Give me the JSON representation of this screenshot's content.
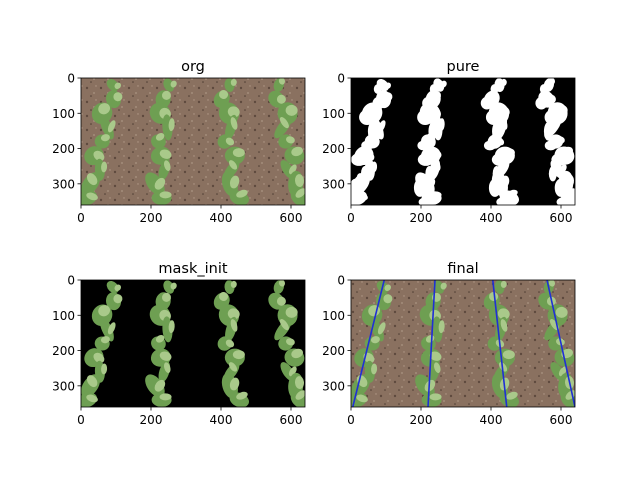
{
  "chart_data": [
    {
      "type": "image",
      "title": "org",
      "content": "rgb field photo of corn rows on soil",
      "xlim": [
        0,
        640
      ],
      "ylim": [
        360,
        0
      ],
      "xticks": [
        0,
        200,
        400,
        600
      ],
      "yticks": [
        0,
        100,
        200,
        300
      ]
    },
    {
      "type": "image",
      "title": "pure",
      "content": "binary vegetation mask, white plants on black",
      "xlim": [
        0,
        640
      ],
      "ylim": [
        360,
        0
      ],
      "xticks": [
        0,
        200,
        400,
        600
      ],
      "yticks": [
        0,
        100,
        200,
        300
      ]
    },
    {
      "type": "image",
      "title": "mask_init",
      "content": "photo masked: plants kept, background black",
      "xlim": [
        0,
        640
      ],
      "ylim": [
        360,
        0
      ],
      "xticks": [
        0,
        200,
        400,
        600
      ],
      "yticks": [
        0,
        100,
        200,
        300
      ]
    },
    {
      "type": "image",
      "title": "final",
      "content": "field photo with detected crop row lines overlaid",
      "xlim": [
        0,
        640
      ],
      "ylim": [
        360,
        0
      ],
      "xticks": [
        0,
        200,
        400,
        600
      ],
      "yticks": [
        0,
        100,
        200,
        300
      ],
      "line_color": "#1f2fd6",
      "row_lines": [
        {
          "x_top": 95,
          "x_bottom": 5
        },
        {
          "x_top": 240,
          "x_bottom": 220
        },
        {
          "x_top": 405,
          "x_bottom": 445
        },
        {
          "x_top": 560,
          "x_bottom": 640
        }
      ]
    }
  ],
  "colors": {
    "soil": "#8a7160",
    "soil_dark": "#5e4a3e",
    "leaf": "#6e9f52",
    "leaf_light": "#a9c98a",
    "mask_white": "#ffffff",
    "mask_black": "#000000"
  },
  "icons": []
}
